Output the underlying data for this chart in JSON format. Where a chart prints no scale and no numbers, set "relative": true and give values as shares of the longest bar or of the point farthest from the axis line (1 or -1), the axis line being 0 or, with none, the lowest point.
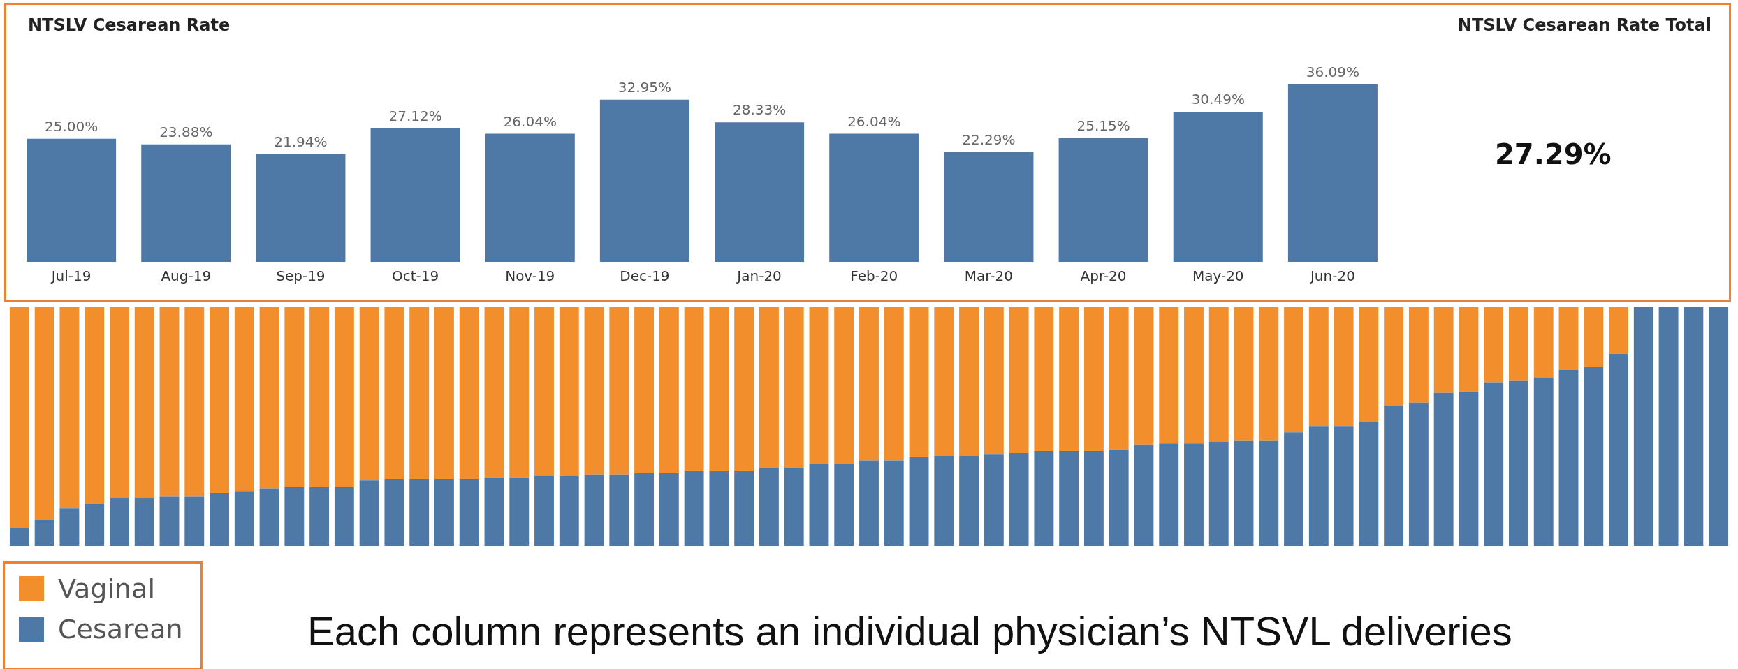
{
  "chart_data": [
    {
      "type": "bar",
      "title": "NTSLV Cesarean Rate",
      "categories": [
        "Jul-19",
        "Aug-19",
        "Sep-19",
        "Oct-19",
        "Nov-19",
        "Dec-19",
        "Jan-20",
        "Feb-20",
        "Mar-20",
        "Apr-20",
        "May-20",
        "Jun-20"
      ],
      "values": [
        25.0,
        23.88,
        21.94,
        27.12,
        26.04,
        32.95,
        28.33,
        26.04,
        22.29,
        25.15,
        30.49,
        36.09
      ],
      "value_labels": [
        "25.00%",
        "23.88%",
        "21.94%",
        "27.12%",
        "26.04%",
        "32.95%",
        "28.33%",
        "26.04%",
        "22.29%",
        "25.15%",
        "30.49%",
        "36.09%"
      ],
      "color": "#4e79a7"
    },
    {
      "type": "other",
      "title": "NTSLV Cesarean Rate Total",
      "annotations": [
        "27.29%"
      ]
    },
    {
      "type": "bar",
      "relative": true,
      "stacked": true,
      "legend": "bottom left",
      "categories": [
        null,
        null,
        null,
        null,
        null,
        null,
        null,
        null,
        null,
        null,
        null,
        null,
        null,
        null,
        null,
        null,
        null,
        null,
        null,
        null,
        null,
        null,
        null,
        null,
        null,
        null,
        null,
        null,
        null,
        null,
        null,
        null,
        null,
        null,
        null,
        null,
        null,
        null,
        null,
        null,
        null,
        null,
        null,
        null,
        null,
        null,
        null,
        null,
        null,
        null,
        null,
        null,
        null,
        null,
        null,
        null,
        null,
        null,
        null,
        null,
        null,
        null,
        null,
        null,
        null,
        null,
        null,
        null,
        null
      ],
      "series": [
        {
          "name": "Cesarean",
          "color": "#4e79a7",
          "values": [
            0.077,
            0.109,
            0.157,
            0.177,
            0.202,
            0.202,
            0.209,
            0.209,
            0.222,
            0.23,
            0.241,
            0.247,
            0.247,
            0.247,
            0.274,
            0.281,
            0.281,
            0.281,
            0.281,
            0.287,
            0.287,
            0.294,
            0.294,
            0.299,
            0.299,
            0.305,
            0.305,
            0.316,
            0.316,
            0.316,
            0.329,
            0.329,
            0.345,
            0.345,
            0.358,
            0.358,
            0.371,
            0.379,
            0.379,
            0.385,
            0.392,
            0.398,
            0.398,
            0.398,
            0.404,
            0.425,
            0.429,
            0.429,
            0.436,
            0.442,
            0.442,
            0.476,
            0.502,
            0.502,
            0.522,
            0.589,
            0.6,
            0.641,
            0.647,
            0.686,
            0.694,
            0.706,
            0.738,
            0.751,
            0.805,
            1,
            1,
            1,
            1
          ]
        },
        {
          "name": "Vaginal",
          "color": "#f28e2b",
          "values": [
            0.923,
            0.891,
            0.843,
            0.823,
            0.798,
            0.798,
            0.791,
            0.791,
            0.778,
            0.77,
            0.759,
            0.753,
            0.753,
            0.753,
            0.726,
            0.719,
            0.719,
            0.719,
            0.719,
            0.713,
            0.713,
            0.706,
            0.706,
            0.701,
            0.701,
            0.695,
            0.695,
            0.684,
            0.684,
            0.684,
            0.671,
            0.671,
            0.655,
            0.655,
            0.642,
            0.642,
            0.629,
            0.621,
            0.621,
            0.615,
            0.608,
            0.602,
            0.602,
            0.602,
            0.596,
            0.575,
            0.571,
            0.571,
            0.564,
            0.558,
            0.558,
            0.524,
            0.498,
            0.498,
            0.478,
            0.411,
            0.4,
            0.359,
            0.353,
            0.314,
            0.306,
            0.294,
            0.262,
            0.249,
            0.195,
            0,
            0,
            0,
            0
          ]
        }
      ],
      "annotations": [
        "Each column represents an individual physician’s NTSVL deliveries"
      ]
    }
  ]
}
